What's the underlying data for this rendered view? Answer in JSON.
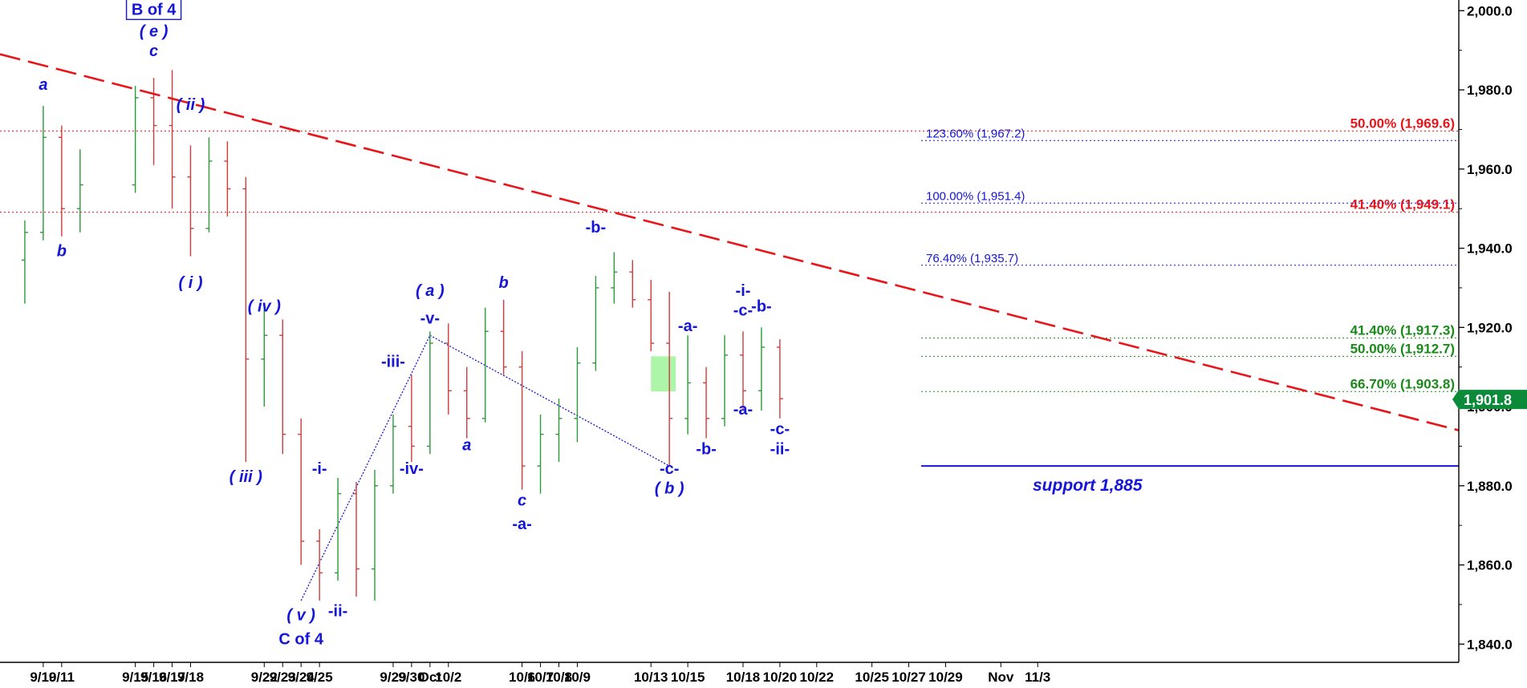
{
  "chart_data": {
    "type": "candlestick",
    "title": "",
    "xlabel": "",
    "ylabel": "",
    "ylim": [
      1835,
      2002
    ],
    "grid": false,
    "y_ticks": [
      "1,840.0",
      "1,860.0",
      "1,880.0",
      "1,900.0",
      "1,920.0",
      "1,940.0",
      "1,960.0",
      "1,980.0",
      "2,000.0"
    ],
    "x_ticks": [
      "9/10",
      "9/11",
      "9/15",
      "9/16",
      "9/17",
      "9/18",
      "9/22",
      "9/23",
      "9/24",
      "9/25",
      "9/29",
      "9/30",
      "Oct",
      "10/2",
      "10/6",
      "10/7",
      "10/8",
      "10/9",
      "10/13",
      "10/15",
      "10/18",
      "10/20",
      "10/22",
      "10/25",
      "10/27",
      "10/29",
      "Nov",
      "11/3"
    ],
    "candles": [
      {
        "x": "9/9",
        "o": 1937,
        "h": 1947,
        "l": 1926,
        "c": 1944
      },
      {
        "x": "9/10",
        "o": 1944,
        "h": 1976,
        "l": 1942,
        "c": 1968
      },
      {
        "x": "9/11",
        "o": 1968,
        "h": 1971,
        "l": 1943,
        "c": 1950
      },
      {
        "x": "9/12",
        "o": 1950,
        "h": 1965,
        "l": 1944,
        "c": 1956
      },
      {
        "x": "9/15",
        "o": 1956,
        "h": 1981,
        "l": 1954,
        "c": 1978
      },
      {
        "x": "9/16",
        "o": 1978,
        "h": 1983,
        "l": 1961,
        "c": 1971
      },
      {
        "x": "9/17",
        "o": 1971,
        "h": 1985,
        "l": 1950,
        "c": 1958
      },
      {
        "x": "9/18",
        "o": 1958,
        "h": 1966,
        "l": 1938,
        "c": 1945
      },
      {
        "x": "9/19",
        "o": 1945,
        "h": 1968,
        "l": 1944,
        "c": 1962
      },
      {
        "x": "9/20",
        "o": 1962,
        "h": 1967,
        "l": 1948,
        "c": 1955
      },
      {
        "x": "9/21",
        "o": 1955,
        "h": 1958,
        "l": 1886,
        "c": 1912
      },
      {
        "x": "9/22",
        "o": 1912,
        "h": 1925,
        "l": 1900,
        "c": 1918
      },
      {
        "x": "9/23",
        "o": 1918,
        "h": 1922,
        "l": 1888,
        "c": 1893
      },
      {
        "x": "9/24",
        "o": 1893,
        "h": 1897,
        "l": 1860,
        "c": 1866
      },
      {
        "x": "9/25",
        "o": 1866,
        "h": 1869,
        "l": 1851,
        "c": 1858
      },
      {
        "x": "9/26",
        "o": 1858,
        "h": 1882,
        "l": 1856,
        "c": 1878
      },
      {
        "x": "9/27",
        "o": 1878,
        "h": 1881,
        "l": 1852,
        "c": 1859
      },
      {
        "x": "9/28",
        "o": 1859,
        "h": 1884,
        "l": 1851,
        "c": 1880
      },
      {
        "x": "9/29",
        "o": 1880,
        "h": 1898,
        "l": 1878,
        "c": 1895
      },
      {
        "x": "9/30",
        "o": 1895,
        "h": 1908,
        "l": 1886,
        "c": 1890
      },
      {
        "x": "10/1",
        "o": 1890,
        "h": 1919,
        "l": 1888,
        "c": 1916
      },
      {
        "x": "10/2",
        "o": 1916,
        "h": 1921,
        "l": 1898,
        "c": 1904
      },
      {
        "x": "10/3",
        "o": 1904,
        "h": 1910,
        "l": 1892,
        "c": 1897
      },
      {
        "x": "10/4",
        "o": 1897,
        "h": 1925,
        "l": 1896,
        "c": 1919
      },
      {
        "x": "10/5",
        "o": 1919,
        "h": 1927,
        "l": 1908,
        "c": 1910
      },
      {
        "x": "10/6",
        "o": 1910,
        "h": 1914,
        "l": 1879,
        "c": 1885
      },
      {
        "x": "10/7",
        "o": 1885,
        "h": 1898,
        "l": 1878,
        "c": 1893
      },
      {
        "x": "10/8",
        "o": 1893,
        "h": 1902,
        "l": 1886,
        "c": 1897
      },
      {
        "x": "10/9",
        "o": 1897,
        "h": 1915,
        "l": 1891,
        "c": 1911
      },
      {
        "x": "10/10",
        "o": 1911,
        "h": 1933,
        "l": 1909,
        "c": 1930
      },
      {
        "x": "10/11",
        "o": 1930,
        "h": 1939,
        "l": 1926,
        "c": 1934
      },
      {
        "x": "10/12",
        "o": 1934,
        "h": 1937,
        "l": 1925,
        "c": 1927
      },
      {
        "x": "10/13",
        "o": 1927,
        "h": 1932,
        "l": 1914,
        "c": 1916
      },
      {
        "x": "10/14",
        "o": 1916,
        "h": 1929,
        "l": 1885,
        "c": 1897
      },
      {
        "x": "10/15",
        "o": 1897,
        "h": 1918,
        "l": 1893,
        "c": 1906
      },
      {
        "x": "10/16",
        "o": 1906,
        "h": 1910,
        "l": 1892,
        "c": 1897
      },
      {
        "x": "10/17",
        "o": 1897,
        "h": 1918,
        "l": 1895,
        "c": 1913
      },
      {
        "x": "10/18",
        "o": 1913,
        "h": 1919,
        "l": 1899,
        "c": 1904
      },
      {
        "x": "10/19",
        "o": 1904,
        "h": 1920,
        "l": 1899,
        "c": 1915
      },
      {
        "x": "10/20",
        "o": 1915,
        "h": 1917,
        "l": 1897,
        "c": 1902
      }
    ],
    "trendline": {
      "color": "#e8161b",
      "start": {
        "x": "9/8",
        "y": 1989
      },
      "end": {
        "x": "11/4",
        "y": 1894
      }
    },
    "support": {
      "label": "support 1,885",
      "value": 1885,
      "color": "#1515d9"
    },
    "last_price": {
      "label": "1,901.8",
      "value": 1901.8,
      "color": "#0b8a3a"
    },
    "zone": {
      "x_from": "10/13",
      "x_to": "10/14",
      "y_from": 1903.8,
      "y_to": 1912.7,
      "color": "#9ff59a"
    },
    "channel_lines": [
      {
        "points": [
          {
            "x": "9/24",
            "y": 1851
          },
          {
            "x": "10/1",
            "y": 1918
          }
        ]
      },
      {
        "points": [
          {
            "x": "10/1",
            "y": 1918
          },
          {
            "x": "10/14",
            "y": 1885
          }
        ]
      }
    ],
    "fib_levels": [
      {
        "label": "50.00% (1,969.6)",
        "value": 1969.6,
        "color": "#e8161b",
        "side": "right"
      },
      {
        "label": "41.40% (1,949.1)",
        "value": 1949.1,
        "color": "#e8161b",
        "side": "right"
      },
      {
        "label": "123.60% (1,967.2)",
        "value": 1967.2,
        "color": "#1515d9",
        "side": "left"
      },
      {
        "label": "100.00% (1,951.4)",
        "value": 1951.4,
        "color": "#1515d9",
        "side": "left"
      },
      {
        "label": "76.40% (1,935.7)",
        "value": 1935.7,
        "color": "#1515d9",
        "side": "left"
      },
      {
        "label": "41.40% (1,917.3)",
        "value": 1917.3,
        "color": "#1a8a1a",
        "side": "right"
      },
      {
        "label": "50.00% (1,912.7)",
        "value": 1912.7,
        "color": "#1a8a1a",
        "side": "right"
      },
      {
        "label": "66.70% (1,903.8)",
        "value": 1903.8,
        "color": "#1a8a1a",
        "side": "right"
      }
    ],
    "annotations": [
      {
        "text": "B of 4",
        "x": "9/16",
        "y": 1999,
        "boxed": true
      },
      {
        "text": "( e )",
        "x": "9/16",
        "y": 1993.5
      },
      {
        "text": "c",
        "x": "9/16",
        "y": 1988.5
      },
      {
        "text": "a",
        "x": "9/10",
        "y": 1980
      },
      {
        "text": "b",
        "x": "9/11",
        "y": 1938
      },
      {
        "text": "( ii )",
        "x": "9/18",
        "y": 1975
      },
      {
        "text": "( i )",
        "x": "9/18",
        "y": 1930
      },
      {
        "text": "( iv )",
        "x": "9/22",
        "y": 1924
      },
      {
        "text": "( iii )",
        "x": "9/21",
        "y": 1881
      },
      {
        "text": "-i-",
        "x": "9/25",
        "y": 1883
      },
      {
        "text": "( v )",
        "x": "9/24",
        "y": 1846
      },
      {
        "text": "C of 4",
        "x": "9/24",
        "y": 1840
      },
      {
        "text": "-ii-",
        "x": "9/26",
        "y": 1847
      },
      {
        "text": "-iii-",
        "x": "9/29",
        "y": 1910
      },
      {
        "text": "-iv-",
        "x": "9/30",
        "y": 1883
      },
      {
        "text": "( a )",
        "x": "10/1",
        "y": 1928
      },
      {
        "text": "-v-",
        "x": "10/1",
        "y": 1921
      },
      {
        "text": "a",
        "x": "10/3",
        "y": 1889
      },
      {
        "text": "b",
        "x": "10/5",
        "y": 1930
      },
      {
        "text": "c",
        "x": "10/6",
        "y": 1875
      },
      {
        "text": "-a-",
        "x": "10/6",
        "y": 1869
      },
      {
        "text": "-b-",
        "x": "10/10",
        "y": 1944
      },
      {
        "text": "-c-",
        "x": "10/14",
        "y": 1883
      },
      {
        "text": "( b )",
        "x": "10/14",
        "y": 1878
      },
      {
        "text": "-a-",
        "x": "10/15",
        "y": 1919
      },
      {
        "text": "-b-",
        "x": "10/16",
        "y": 1888
      },
      {
        "text": "-i-",
        "x": "10/18",
        "y": 1928
      },
      {
        "text": "-c-",
        "x": "10/18",
        "y": 1923
      },
      {
        "text": "-b-",
        "x": "10/19",
        "y": 1924
      },
      {
        "text": "-a-",
        "x": "10/18",
        "y": 1898
      },
      {
        "text": "-c-",
        "x": "10/20",
        "y": 1893
      },
      {
        "text": "-ii-",
        "x": "10/20",
        "y": 1888
      }
    ]
  }
}
